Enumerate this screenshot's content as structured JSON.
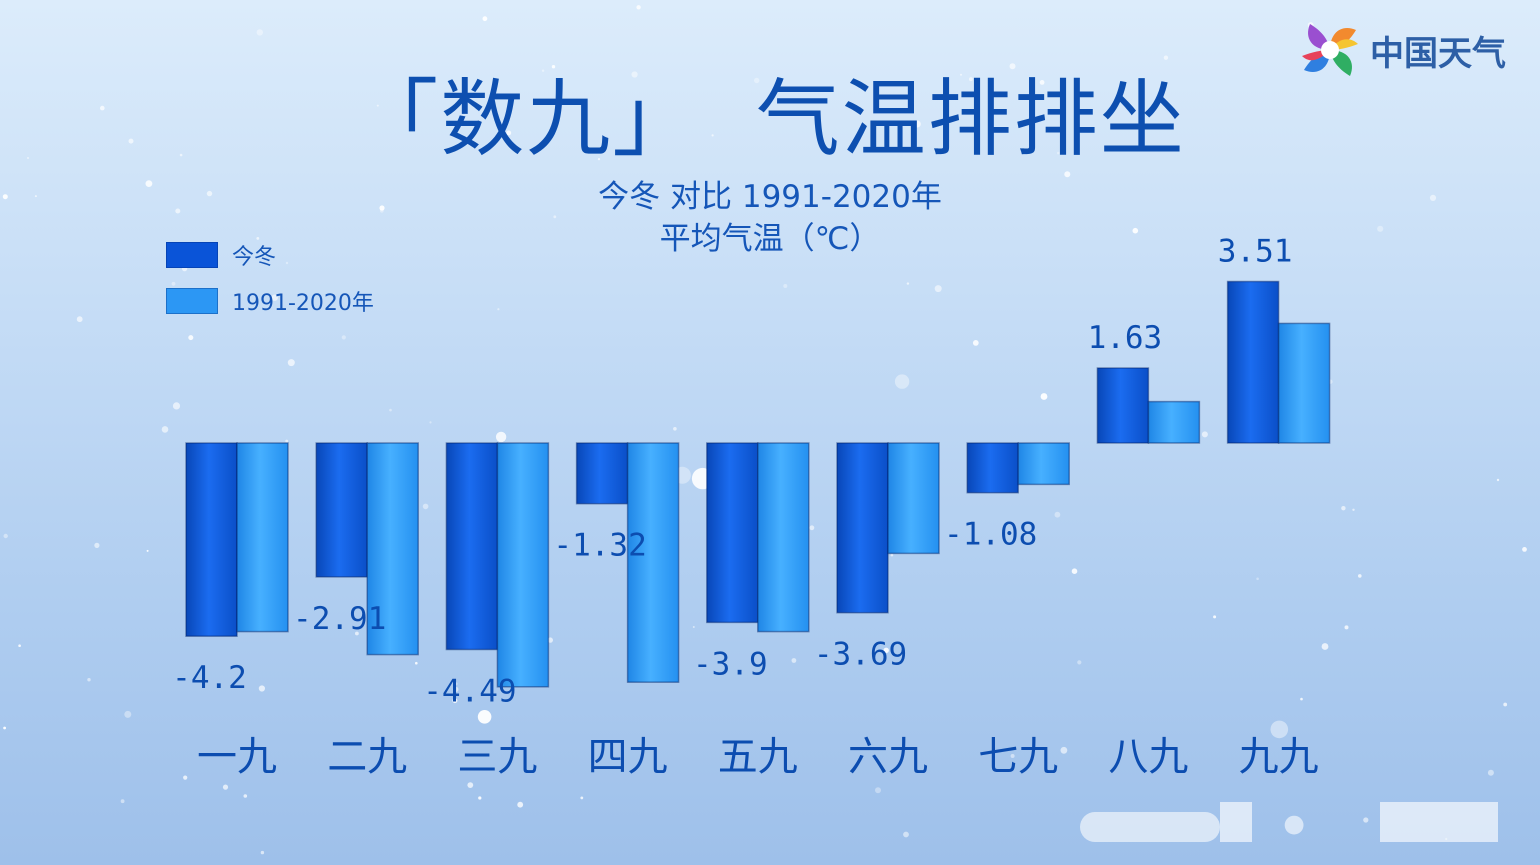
{
  "title": "「数九」  气温排排坐",
  "subtitle": [
    "今冬 对比 1991-2020年",
    "平均气温（℃）"
  ],
  "logo": {
    "text": "中国天气",
    "icon": "pinwheel-logo-icon"
  },
  "colors": {
    "this_winter": "#0a54d8",
    "climate": "#2c97f4",
    "text": "#0c4db0"
  },
  "chart_data": {
    "type": "bar",
    "title": "「数九」  气温排排坐",
    "subtitle": "今冬 对比 1991-2020年 平均气温（℃）",
    "categories": [
      "一九",
      "二九",
      "三九",
      "四九",
      "五九",
      "六九",
      "七九",
      "八九",
      "九九"
    ],
    "series": [
      {
        "name": "今冬",
        "values": [
          -4.2,
          -2.91,
          -4.49,
          -1.32,
          -3.9,
          -3.69,
          -1.08,
          1.63,
          3.51
        ],
        "labels": [
          "-4.2",
          "-2.91",
          "-4.49",
          "-1.32",
          "-3.9",
          "-3.69",
          "-1.08",
          "1.63",
          "3.51"
        ]
      },
      {
        "name": "1991-2020年",
        "values": [
          -4.1,
          -4.6,
          -5.3,
          -5.2,
          -4.1,
          -2.4,
          -0.9,
          0.9,
          2.6
        ]
      }
    ],
    "ylim": [
      -5.5,
      4
    ],
    "legend": "top-left",
    "grid": false
  }
}
